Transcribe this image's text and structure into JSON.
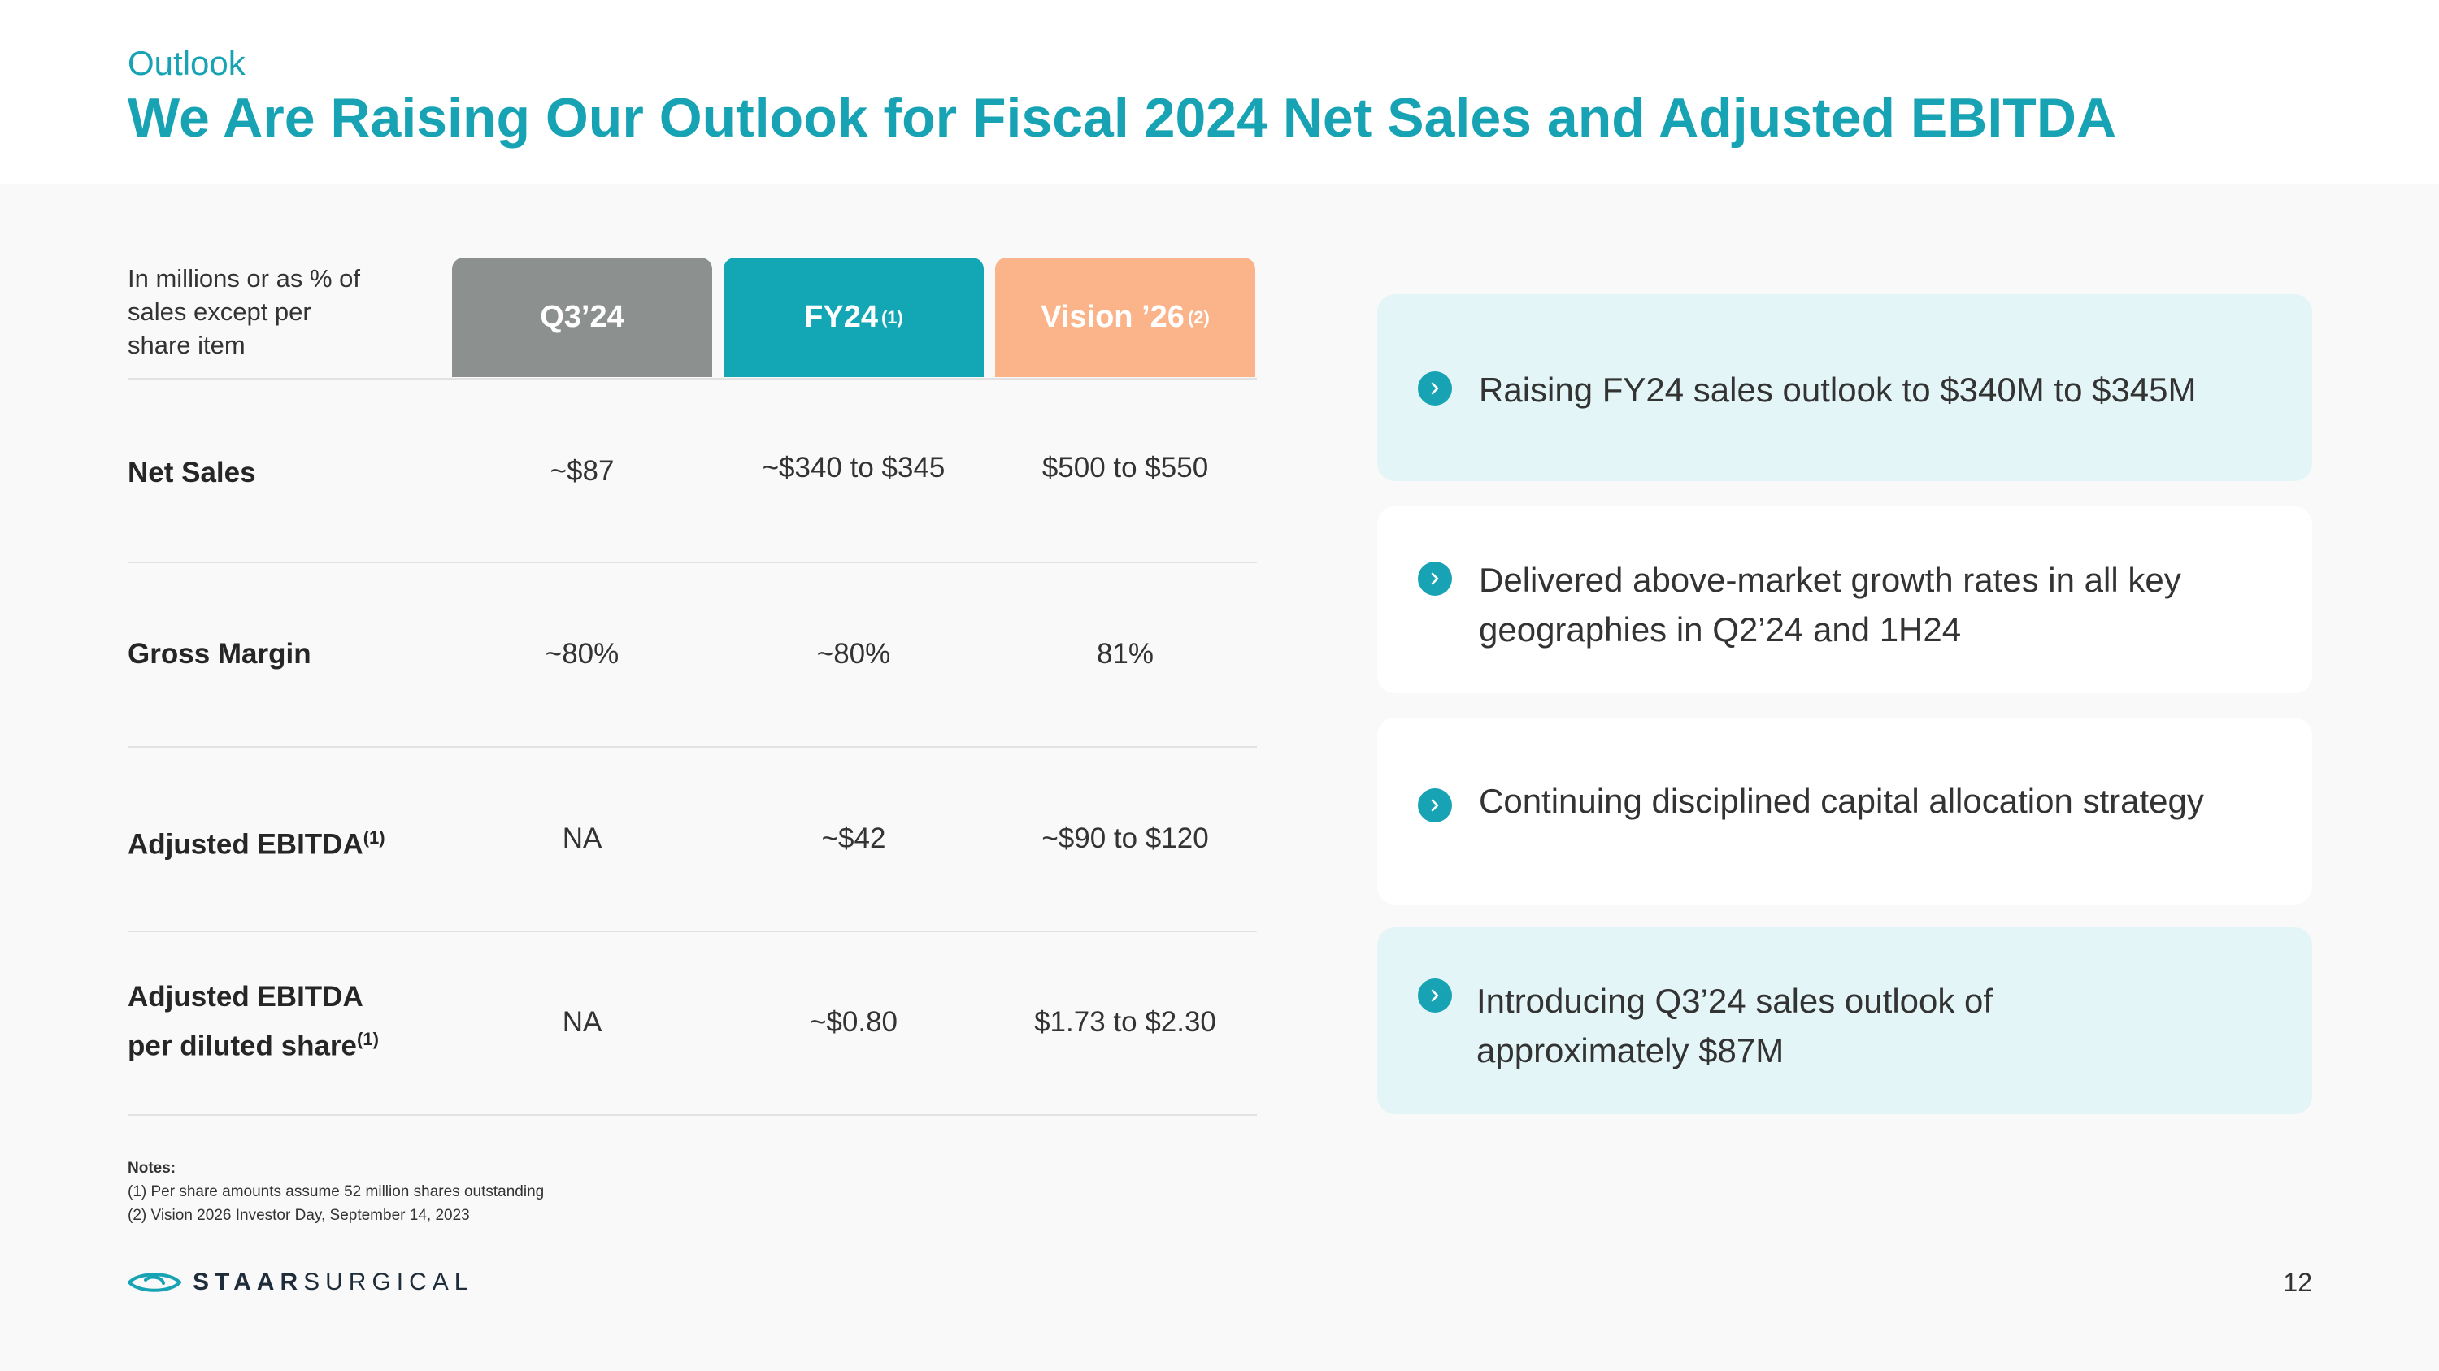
{
  "header": {
    "eyebrow": "Outlook",
    "title": "We Are Raising Our Outlook for Fiscal 2024 Net Sales and Adjusted EBITDA"
  },
  "table": {
    "units_note": "In millions or as % of sales except per share item",
    "columns": [
      {
        "label": "Q3’24",
        "sup": "",
        "color": "#8c9190"
      },
      {
        "label": "FY24",
        "sup": "(1)",
        "color": "#13a6b4"
      },
      {
        "label": "Vision ’26",
        "sup": "(2)",
        "color": "#fbb48a"
      }
    ],
    "rows": [
      {
        "label": "Net Sales",
        "label2": "",
        "sup": "",
        "values": [
          "~$87",
          "~$340 to $345",
          "$500 to $550"
        ]
      },
      {
        "label": "Gross Margin",
        "label2": "",
        "sup": "",
        "values": [
          "~80%",
          "~80%",
          "81%"
        ]
      },
      {
        "label": "Adjusted EBITDA",
        "label2": "",
        "sup": "(1)",
        "values": [
          "NA",
          "~$42",
          "~$90 to $120"
        ]
      },
      {
        "label": "Adjusted EBITDA",
        "label2": "per diluted share",
        "sup": "(1)",
        "values": [
          "NA",
          "~$0.80",
          "$1.73 to $2.30"
        ]
      }
    ]
  },
  "notes": {
    "title": "Notes:",
    "items": [
      "(1) Per share amounts assume 52 million shares outstanding",
      "(2) Vision 2026 Investor Day, September 14, 2023"
    ]
  },
  "highlights": [
    {
      "text": "Raising FY24 sales outlook to $340M to $345M",
      "style": "teal"
    },
    {
      "text": "Delivered above-market growth rates in all key geographies in Q2’24 and 1H24",
      "style": "white"
    },
    {
      "text": "Continuing disciplined capital allocation strategy",
      "style": "white"
    },
    {
      "text": "Introducing Q3’24 sales outlook of approximately $87M",
      "style": "teal"
    }
  ],
  "footer": {
    "logo_bold": "STAAR",
    "logo_light": "SURGICAL",
    "page_number": "12"
  },
  "colors": {
    "accent": "#17a3b3",
    "q3": "#8c9190",
    "fy24": "#13a6b4",
    "vision": "#fbb48a"
  }
}
